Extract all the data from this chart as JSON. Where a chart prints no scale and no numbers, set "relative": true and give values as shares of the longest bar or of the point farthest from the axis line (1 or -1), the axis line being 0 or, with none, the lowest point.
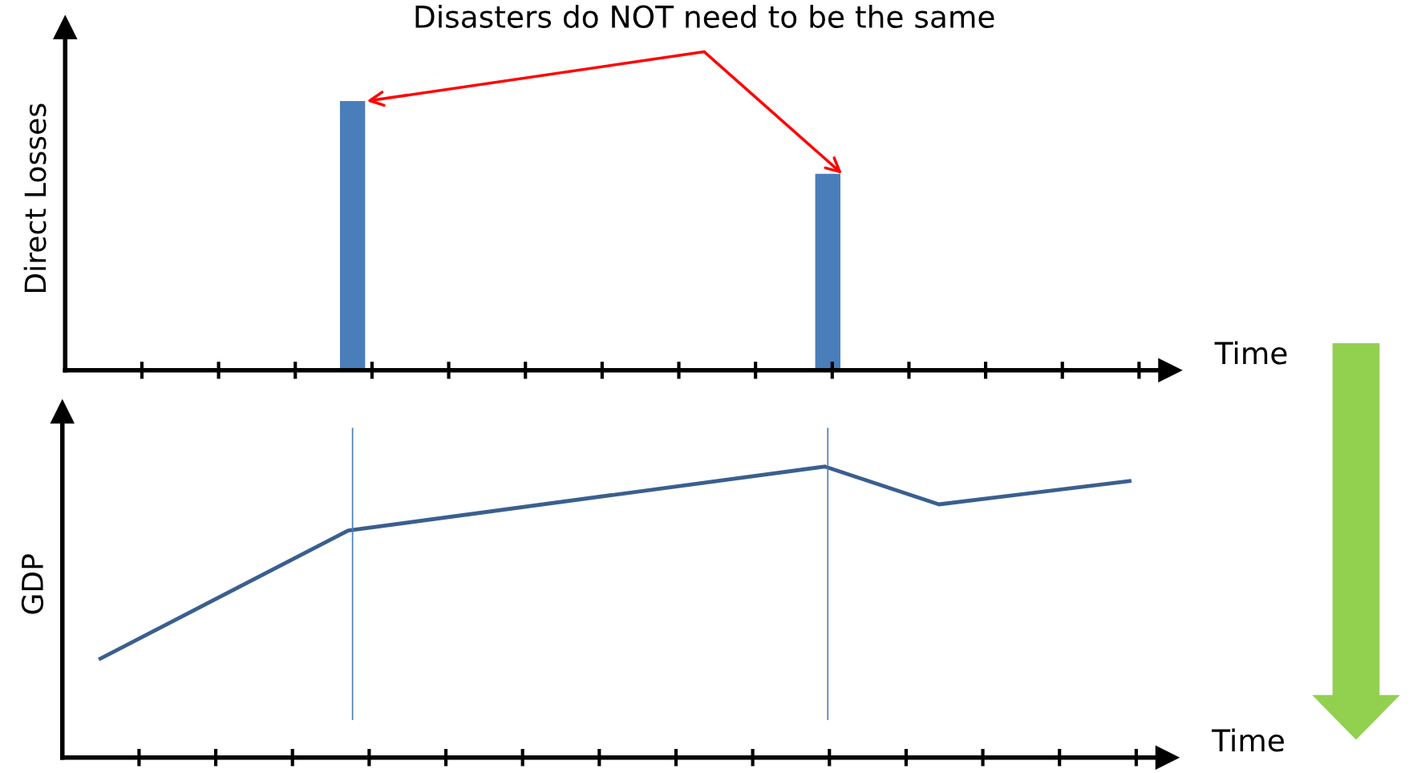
{
  "chart_data": [
    {
      "type": "bar",
      "relative": true,
      "ylabel": "Direct Losses",
      "xlabel": "Time",
      "color": "#4a7ebb",
      "title": "Disasters do NOT need to be the same",
      "categories": [
        null,
        null
      ],
      "values": [
        1,
        0.73
      ]
    },
    {
      "type": "line",
      "relative": true,
      "ylabel": "GDP",
      "xlabel": "Time",
      "color": "#3a5f8f",
      "categories": [
        null,
        null,
        null,
        null,
        null,
        null,
        null,
        null,
        null,
        null,
        null,
        null,
        null,
        null,
        null,
        null,
        null,
        null,
        null,
        null,
        null,
        null,
        null,
        null,
        null,
        null,
        null,
        null,
        null,
        null,
        null,
        null,
        null,
        null,
        null,
        null,
        null,
        null,
        null,
        null,
        null,
        null,
        null,
        null,
        null,
        null,
        null,
        null,
        null,
        null,
        null,
        null,
        null,
        null,
        null,
        null,
        null,
        null
      ],
      "values": [
        null,
        null,
        0.34,
        null,
        null,
        null,
        null,
        null,
        null,
        null,
        null,
        null,
        null,
        null,
        null,
        0.78,
        null,
        null,
        null,
        null,
        null,
        null,
        null,
        null,
        null,
        null,
        null,
        null,
        null,
        null,
        null,
        null,
        null,
        null,
        null,
        null,
        null,
        null,
        null,
        null,
        1,
        null,
        null,
        null,
        null,
        null,
        0.87,
        null,
        null,
        null,
        null,
        null,
        null,
        null,
        null,
        null,
        0.95,
        null
      ],
      "marker": "none",
      "line_style": "solid"
    }
  ]
}
